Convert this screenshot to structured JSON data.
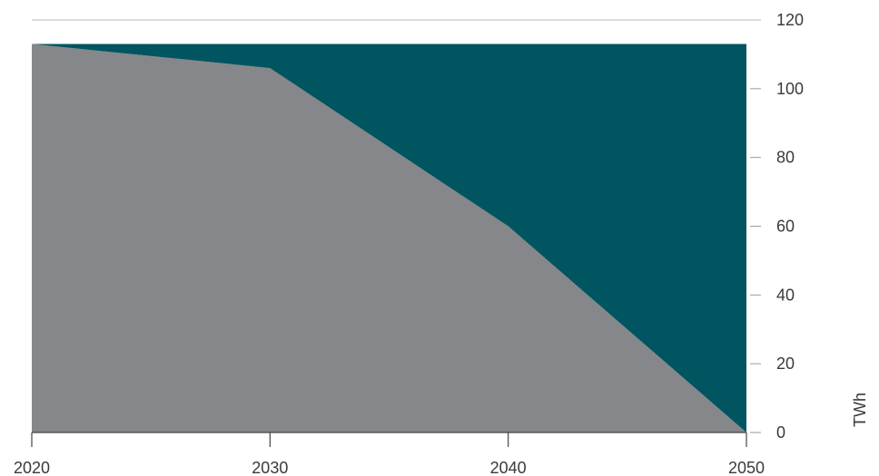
{
  "chart_data": {
    "type": "area",
    "stacked": true,
    "x": [
      2020,
      2030,
      2040,
      2050
    ],
    "series": [
      {
        "values": [
          113,
          106,
          60,
          0
        ],
        "color": "#86878a"
      },
      {
        "values": [
          0,
          7,
          53,
          113
        ],
        "color": "#005560"
      }
    ],
    "xticks": [
      "2020",
      "2030",
      "2040",
      "2050"
    ],
    "yticks": [
      "0",
      "20",
      "40",
      "60",
      "80",
      "100",
      "120"
    ],
    "xlim": [
      2020,
      2050
    ],
    "ylim": [
      0,
      120
    ],
    "ylabel": "TWh",
    "yaxis_side": "right",
    "grid": false
  }
}
